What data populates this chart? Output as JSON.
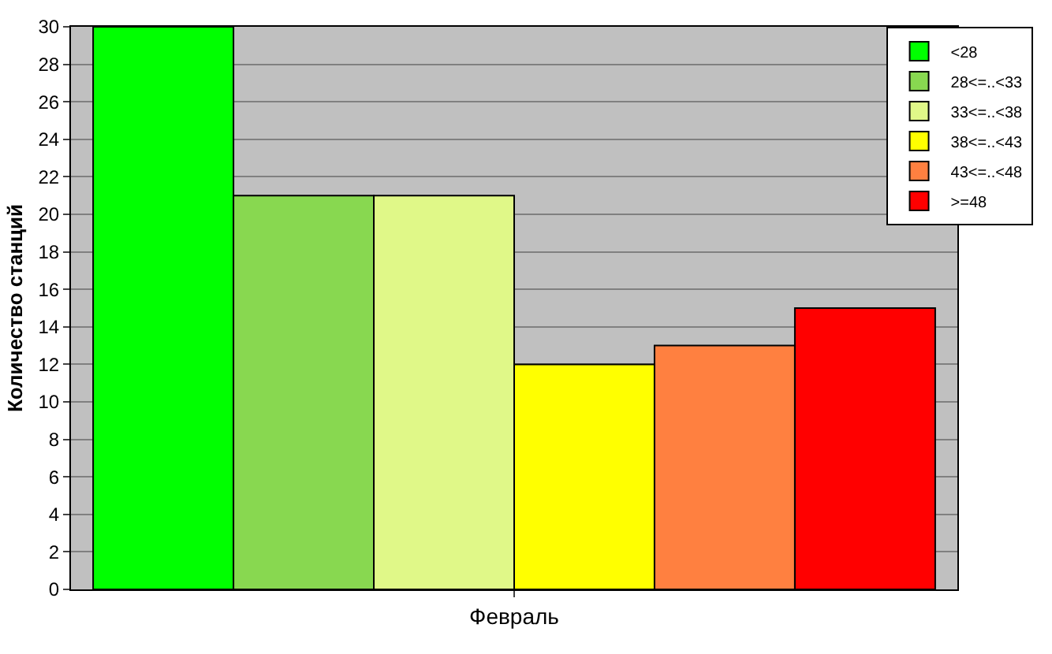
{
  "chart_data": {
    "type": "bar",
    "ylabel": "Количество станций",
    "categories": [
      "Февраль"
    ],
    "series": [
      {
        "name": "<28",
        "color": "#00ff00",
        "values": [
          30
        ]
      },
      {
        "name": "28<=..<33",
        "color": "#88d850",
        "values": [
          21
        ]
      },
      {
        "name": "33<=..<38",
        "color": "#e0f888",
        "values": [
          21
        ]
      },
      {
        "name": "38<=..<43",
        "color": "#ffff00",
        "values": [
          12
        ]
      },
      {
        "name": "43<=..<48",
        "color": "#ff8040",
        "values": [
          13
        ]
      },
      {
        "name": ">=48",
        "color": "#ff0000",
        "values": [
          15
        ]
      }
    ],
    "ylim": [
      0,
      30
    ],
    "yticks": [
      0,
      2,
      4,
      6,
      8,
      10,
      12,
      14,
      16,
      18,
      20,
      22,
      24,
      26,
      28,
      30
    ],
    "grid": "y",
    "legend": "top right"
  }
}
